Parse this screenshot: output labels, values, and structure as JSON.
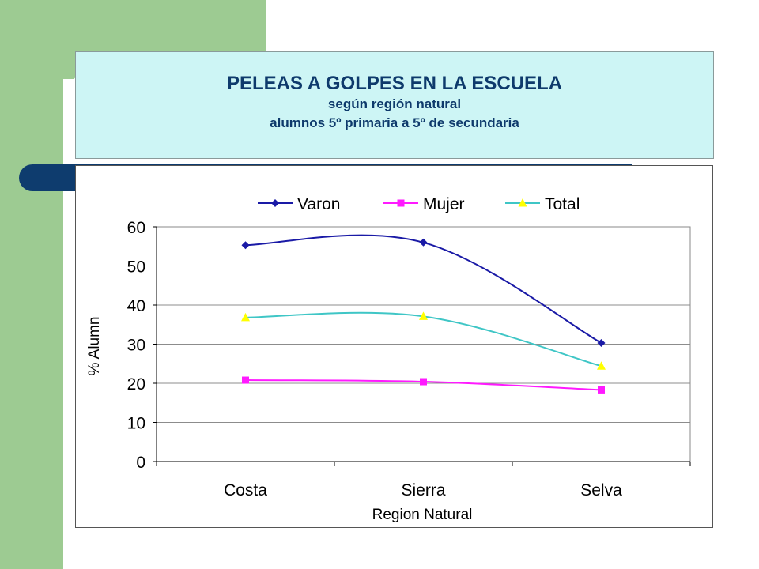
{
  "title": "PELEAS A GOLPES EN LA ESCUELA",
  "subtitle1": "según región natural",
  "subtitle2": "alumnos 5º primaria a 5º de secundaria",
  "colors": {
    "varon": "#1a1aa6",
    "mujer": "#ff1aff",
    "total": "#3fc6c6",
    "total_marker": "#ffff00",
    "navy": "#0e3c6e",
    "green": "#9dcb92",
    "title_bg": "#cdf5f5"
  },
  "chart_data": {
    "type": "line",
    "categories": [
      "Costa",
      "Sierra",
      "Selva"
    ],
    "series": [
      {
        "name": "Varon",
        "values": [
          55.3,
          56.0,
          30.3
        ],
        "marker": "diamond"
      },
      {
        "name": "Mujer",
        "values": [
          20.8,
          20.4,
          18.3
        ],
        "marker": "square"
      },
      {
        "name": "Total",
        "values": [
          36.8,
          37.1,
          24.4
        ],
        "marker": "triangle"
      }
    ],
    "xlabel": "Region Natural",
    "ylabel": "% Alumn",
    "ylim": [
      0,
      60
    ],
    "yticks": [
      "0",
      "10",
      "20",
      "30",
      "40",
      "50",
      "60"
    ],
    "grid": true,
    "legend": "top"
  }
}
